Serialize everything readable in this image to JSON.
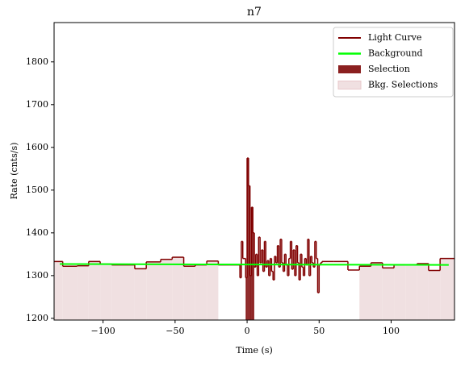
{
  "chart_data": {
    "type": "step",
    "title": "n7",
    "xlabel": "Time (s)",
    "ylabel": "Rate (cnts/s)",
    "xlim": [
      -134,
      144
    ],
    "ylim": [
      1196,
      1892
    ],
    "xticks": [
      {
        "value": -100,
        "label": "−100"
      },
      {
        "value": -50,
        "label": "−50"
      },
      0,
      50,
      100
    ],
    "yticks": [
      1200,
      1300,
      1400,
      1500,
      1600,
      1700,
      1800
    ],
    "legend": "upper right",
    "series": [
      {
        "name": "Light Curve",
        "color": "#800000",
        "x": [
          -134,
          -128,
          -118,
          -110,
          -102,
          -94,
          -78,
          -70,
          -60,
          -52,
          -44,
          -36,
          -28,
          -20,
          -5,
          -4,
          -3,
          -2,
          -1,
          0,
          1,
          2,
          3,
          4,
          5,
          6,
          7,
          8,
          9,
          10,
          11,
          12,
          13,
          14,
          15,
          16,
          17,
          18,
          19,
          20,
          21,
          22,
          23,
          24,
          25,
          26,
          27,
          28,
          29,
          30,
          31,
          32,
          33,
          34,
          35,
          36,
          37,
          38,
          39,
          40,
          41,
          42,
          43,
          44,
          45,
          46,
          47,
          48,
          49,
          50,
          51,
          52,
          60,
          70,
          78,
          86,
          94,
          102,
          110,
          118,
          126,
          134,
          144
        ],
        "values": [
          1333,
          1322,
          1323,
          1333,
          1327,
          1325,
          1316,
          1332,
          1338,
          1343,
          1322,
          1325,
          1334,
          1325,
          1295,
          1380,
          1340,
          1340,
          1295,
          1575,
          1510,
          1300,
          1460,
          1400,
          1320,
          1350,
          1300,
          1390,
          1330,
          1360,
          1310,
          1380,
          1320,
          1335,
          1300,
          1340,
          1310,
          1290,
          1345,
          1330,
          1370,
          1320,
          1385,
          1330,
          1310,
          1350,
          1325,
          1300,
          1340,
          1380,
          1315,
          1360,
          1300,
          1370,
          1330,
          1290,
          1350,
          1320,
          1300,
          1340,
          1325,
          1385,
          1300,
          1345,
          1330,
          1320,
          1380,
          1340,
          1260,
          1325,
          1330,
          1333,
          1333,
          1313,
          1322,
          1330,
          1318,
          1325,
          1325,
          1328,
          1312,
          1340,
          1340
        ]
      },
      {
        "name": "Background",
        "color": "#00ff00",
        "x": [
          -130,
          140
        ],
        "values": [
          1327,
          1325
        ]
      }
    ],
    "selections": [
      {
        "name": "Selection",
        "color": "#8b2020",
        "ranges": [
          [
            -1,
            5
          ]
        ]
      },
      {
        "name": "Bkg. Selections",
        "color": "#f0e0e1",
        "ranges": [
          [
            -134,
            -20
          ],
          [
            78,
            144
          ]
        ]
      }
    ]
  }
}
